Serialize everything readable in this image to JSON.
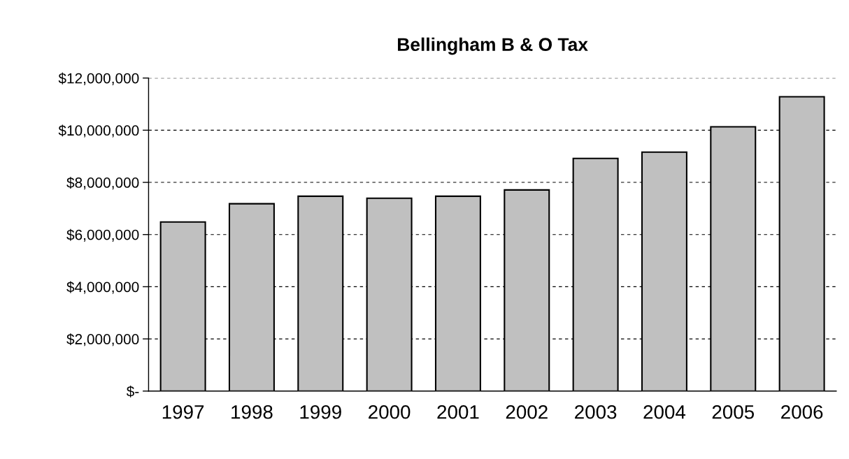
{
  "chart_data": {
    "type": "bar",
    "title": "Bellingham B & O Tax",
    "categories": [
      "1997",
      "1998",
      "1999",
      "2000",
      "2001",
      "2002",
      "2003",
      "2004",
      "2005",
      "2006"
    ],
    "values": [
      6480000,
      7180000,
      7470000,
      7390000,
      7470000,
      7710000,
      8920000,
      9160000,
      10130000,
      11280000
    ],
    "color": "#c0c0c0",
    "ylim": [
      0,
      12000000
    ],
    "yticks": [
      {
        "value": 0,
        "label": "$-"
      },
      {
        "value": 2000000,
        "label": "$2,000,000"
      },
      {
        "value": 4000000,
        "label": "$4,000,000"
      },
      {
        "value": 6000000,
        "label": "$6,000,000"
      },
      {
        "value": 8000000,
        "label": "$8,000,000"
      },
      {
        "value": 10000000,
        "label": "$10,000,000"
      },
      {
        "value": 12000000,
        "label": "$12,000,000"
      }
    ],
    "grid": "y"
  }
}
